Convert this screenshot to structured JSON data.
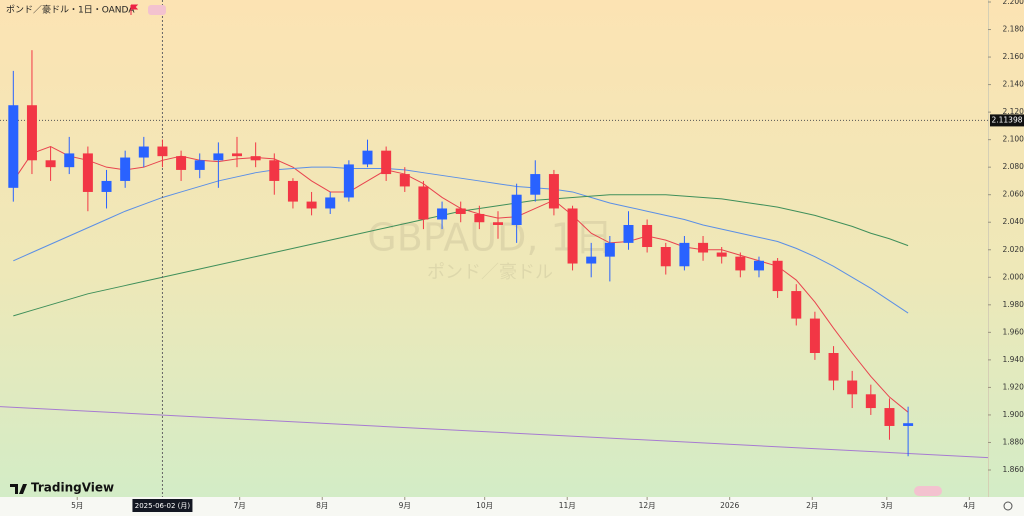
{
  "chart_data": {
    "type": "candlestick",
    "title": "ポンド／豪ドル・1日・OANDA",
    "watermark": "GBPAUD, 1日",
    "watermark_subtitle": "ポンド／豪ドル",
    "logo": "TradingView",
    "x": [
      "2025-04-07",
      "2025-04-14",
      "2025-04-21",
      "2025-04-28",
      "2025-05-05",
      "2025-05-12",
      "2025-05-19",
      "2025-05-26",
      "2025-06-02",
      "2025-06-09",
      "2025-06-16",
      "2025-06-23",
      "2025-06-30",
      "2025-07-07",
      "2025-07-14",
      "2025-07-21",
      "2025-07-28",
      "2025-08-04",
      "2025-08-11",
      "2025-08-18",
      "2025-08-25",
      "2025-09-01",
      "2025-09-08",
      "2025-09-15",
      "2025-09-22",
      "2025-09-29",
      "2025-10-06",
      "2025-10-13",
      "2025-10-20",
      "2025-10-27",
      "2025-11-03",
      "2025-11-10",
      "2025-11-17",
      "2025-11-24",
      "2025-12-01",
      "2025-12-08",
      "2025-12-15",
      "2025-12-22",
      "2025-12-29",
      "2026-01-05",
      "2026-01-12",
      "2026-01-19",
      "2026-01-26",
      "2026-02-02",
      "2026-02-09",
      "2026-02-16",
      "2026-02-23",
      "2026-03-02",
      "2026-03-09"
    ],
    "open": [
      2.065,
      2.125,
      2.085,
      2.08,
      2.09,
      2.062,
      2.07,
      2.087,
      2.095,
      2.088,
      2.078,
      2.085,
      2.09,
      2.088,
      2.085,
      2.07,
      2.055,
      2.05,
      2.058,
      2.082,
      2.092,
      2.075,
      2.066,
      2.042,
      2.05,
      2.046,
      2.04,
      2.038,
      2.06,
      2.075,
      2.05,
      2.01,
      2.015,
      2.025,
      2.038,
      2.022,
      2.008,
      2.025,
      2.018,
      2.015,
      2.005,
      2.012,
      1.99,
      1.97,
      1.945,
      1.925,
      1.915,
      1.905,
      1.892
    ],
    "high": [
      2.15,
      2.165,
      2.095,
      2.102,
      2.095,
      2.078,
      2.092,
      2.102,
      2.1,
      2.092,
      2.09,
      2.098,
      2.102,
      2.098,
      2.09,
      2.072,
      2.062,
      2.062,
      2.085,
      2.1,
      2.095,
      2.08,
      2.07,
      2.055,
      2.055,
      2.052,
      2.048,
      2.068,
      2.085,
      2.078,
      2.052,
      2.025,
      2.03,
      2.048,
      2.042,
      2.025,
      2.03,
      2.03,
      2.022,
      2.018,
      2.015,
      2.014,
      1.995,
      1.975,
      1.95,
      1.932,
      1.922,
      1.912,
      1.906
    ],
    "low": [
      2.055,
      2.075,
      2.07,
      2.075,
      2.048,
      2.05,
      2.065,
      2.08,
      2.08,
      2.07,
      2.072,
      2.065,
      2.08,
      2.08,
      2.06,
      2.05,
      2.045,
      2.046,
      2.055,
      2.08,
      2.07,
      2.062,
      2.035,
      2.035,
      2.04,
      2.035,
      2.028,
      2.025,
      2.055,
      2.045,
      2.005,
      2.0,
      1.997,
      2.02,
      2.018,
      2.002,
      2.005,
      2.012,
      2.01,
      2.0,
      2.0,
      1.985,
      1.965,
      1.94,
      1.918,
      1.905,
      1.9,
      1.882,
      1.87
    ],
    "close": [
      2.125,
      2.085,
      2.08,
      2.09,
      2.062,
      2.07,
      2.087,
      2.095,
      2.088,
      2.078,
      2.085,
      2.09,
      2.088,
      2.085,
      2.07,
      2.055,
      2.05,
      2.058,
      2.082,
      2.092,
      2.075,
      2.066,
      2.042,
      2.05,
      2.046,
      2.04,
      2.038,
      2.06,
      2.075,
      2.05,
      2.01,
      2.015,
      2.025,
      2.038,
      2.022,
      2.008,
      2.025,
      2.018,
      2.015,
      2.005,
      2.012,
      1.99,
      1.97,
      1.945,
      1.925,
      1.915,
      1.905,
      1.892,
      1.894
    ],
    "up_color": "#2962ff",
    "down_color": "#f23645",
    "series": [
      {
        "color": "#e8444f",
        "values": [
          2.07,
          2.09,
          2.095,
          2.088,
          2.085,
          2.08,
          2.078,
          2.08,
          2.085,
          2.088,
          2.085,
          2.084,
          2.086,
          2.087,
          2.086,
          2.08,
          2.07,
          2.062,
          2.062,
          2.07,
          2.078,
          2.075,
          2.068,
          2.058,
          2.05,
          2.046,
          2.043,
          2.044,
          2.05,
          2.056,
          2.045,
          2.032,
          2.025,
          2.026,
          2.03,
          2.027,
          2.022,
          2.02,
          2.02,
          2.016,
          2.012,
          2.008,
          1.998,
          1.982,
          1.963,
          1.945,
          1.928,
          1.913,
          1.902
        ]
      },
      {
        "color": "#5b8fe6",
        "values": [
          2.012,
          2.018,
          2.024,
          2.03,
          2.036,
          2.042,
          2.048,
          2.053,
          2.058,
          2.062,
          2.066,
          2.07,
          2.073,
          2.076,
          2.078,
          2.079,
          2.08,
          2.08,
          2.079,
          2.079,
          2.079,
          2.078,
          2.076,
          2.074,
          2.072,
          2.07,
          2.068,
          2.066,
          2.065,
          2.064,
          2.062,
          2.058,
          2.054,
          2.051,
          2.048,
          2.045,
          2.042,
          2.038,
          2.035,
          2.032,
          2.029,
          2.026,
          2.021,
          2.015,
          2.008,
          2.0,
          1.992,
          1.983,
          1.974
        ]
      },
      {
        "color": "#3f8f5a",
        "values": [
          1.972,
          1.976,
          1.98,
          1.984,
          1.988,
          1.991,
          1.994,
          1.997,
          2.0,
          2.003,
          2.006,
          2.009,
          2.012,
          2.015,
          2.018,
          2.021,
          2.024,
          2.027,
          2.03,
          2.033,
          2.036,
          2.039,
          2.042,
          2.045,
          2.048,
          2.05,
          2.052,
          2.054,
          2.056,
          2.057,
          2.058,
          2.059,
          2.06,
          2.06,
          2.06,
          2.06,
          2.059,
          2.058,
          2.057,
          2.055,
          2.053,
          2.051,
          2.048,
          2.045,
          2.041,
          2.037,
          2.032,
          2.028,
          2.023
        ]
      }
    ],
    "trend_line": {
      "color": "#a77bd1",
      "x": [
        "2025-04-02",
        "2026-04-08"
      ],
      "values": [
        1.906,
        1.869
      ]
    },
    "price_line": 2.11398,
    "crosshair": {
      "x": "2025-06-02",
      "label": "2025-06-02 (月)"
    },
    "xlim": [
      "2025-04-02",
      "2026-04-08"
    ],
    "xticks": [
      {
        "value": "2025-05-01",
        "label": "5月"
      },
      {
        "value": "2025-07-01",
        "label": "7月"
      },
      {
        "value": "2025-08-01",
        "label": "8月"
      },
      {
        "value": "2025-09-01",
        "label": "9月"
      },
      {
        "value": "2025-10-01",
        "label": "10月"
      },
      {
        "value": "2025-11-01",
        "label": "11月"
      },
      {
        "value": "2025-12-01",
        "label": "12月"
      },
      {
        "value": "2026-01-01",
        "label": "2026"
      },
      {
        "value": "2026-02-01",
        "label": "2月"
      },
      {
        "value": "2026-03-01",
        "label": "3月"
      },
      {
        "value": "2026-04-01",
        "label": "4月"
      }
    ],
    "ylim": [
      1.86,
      2.2
    ],
    "yticks": [
      {
        "value": 1.86,
        "label": "1.86000"
      },
      {
        "value": 1.88,
        "label": "1.88000"
      },
      {
        "value": 1.9,
        "label": "1.90000"
      },
      {
        "value": 1.92,
        "label": "1.92000"
      },
      {
        "value": 1.94,
        "label": "1.94000"
      },
      {
        "value": 1.96,
        "label": "1.96000"
      },
      {
        "value": 1.98,
        "label": "1.98000"
      },
      {
        "value": 2.0,
        "label": "2.00000"
      },
      {
        "value": 2.02,
        "label": "2.02000"
      },
      {
        "value": 2.04,
        "label": "2.04000"
      },
      {
        "value": 2.06,
        "label": "2.06000"
      },
      {
        "value": 2.08,
        "label": "2.08000"
      },
      {
        "value": 2.1,
        "label": "2.10000"
      },
      {
        "value": 2.12,
        "label": "2.12000"
      },
      {
        "value": 2.14,
        "label": "2.14000"
      },
      {
        "value": 2.16,
        "label": "2.16000"
      },
      {
        "value": 2.18,
        "label": "2.18000"
      },
      {
        "value": 2.2,
        "label": "2.20000"
      }
    ]
  }
}
